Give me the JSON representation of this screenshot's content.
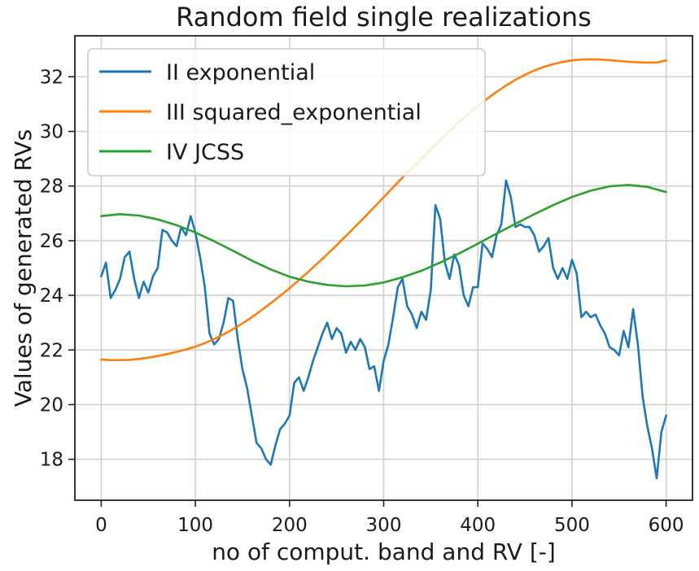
{
  "chart_data": {
    "type": "line",
    "title": "Random field single realizations",
    "xlabel": "no of comput. band and RV [-]",
    "ylabel": "Values of generated RVs",
    "xlim": [
      -28,
      628
    ],
    "ylim": [
      16.5,
      33.5
    ],
    "x_ticks": [
      0,
      100,
      200,
      300,
      400,
      500,
      600
    ],
    "y_ticks": [
      18,
      20,
      22,
      24,
      26,
      28,
      30,
      32
    ],
    "grid": true,
    "legend_position": "upper-left",
    "series": [
      {
        "name": "II exponential",
        "color": "#1f77b4",
        "x": [
          0,
          5,
          10,
          15,
          20,
          25,
          30,
          35,
          40,
          45,
          50,
          55,
          60,
          65,
          70,
          75,
          80,
          85,
          90,
          95,
          100,
          105,
          110,
          115,
          120,
          125,
          130,
          135,
          140,
          145,
          150,
          155,
          160,
          165,
          170,
          175,
          180,
          185,
          190,
          195,
          200,
          205,
          210,
          215,
          220,
          225,
          230,
          235,
          240,
          245,
          250,
          255,
          260,
          265,
          270,
          275,
          280,
          285,
          290,
          295,
          300,
          305,
          310,
          315,
          320,
          325,
          330,
          335,
          340,
          345,
          350,
          355,
          360,
          365,
          370,
          375,
          380,
          385,
          390,
          395,
          400,
          405,
          410,
          415,
          420,
          425,
          430,
          435,
          440,
          445,
          450,
          455,
          460,
          465,
          470,
          475,
          480,
          485,
          490,
          495,
          500,
          505,
          510,
          515,
          520,
          525,
          530,
          535,
          540,
          545,
          550,
          555,
          560,
          565,
          570,
          575,
          580,
          585,
          590,
          595,
          600
        ],
        "values": [
          24.7,
          25.2,
          23.9,
          24.2,
          24.6,
          25.4,
          25.6,
          24.6,
          23.9,
          24.5,
          24.1,
          24.7,
          25.0,
          26.4,
          26.3,
          26.0,
          25.8,
          26.5,
          26.2,
          26.9,
          26.3,
          25.4,
          24.3,
          22.6,
          22.2,
          22.4,
          23.0,
          23.9,
          23.8,
          22.4,
          21.3,
          20.6,
          19.6,
          18.6,
          18.4,
          18.0,
          17.8,
          18.5,
          19.1,
          19.3,
          19.6,
          20.8,
          21.0,
          20.5,
          21.0,
          21.6,
          22.1,
          22.6,
          23.0,
          22.4,
          22.8,
          22.6,
          21.9,
          22.3,
          22.0,
          22.4,
          22.1,
          21.3,
          21.4,
          20.5,
          21.6,
          22.2,
          23.2,
          24.3,
          24.6,
          23.6,
          23.3,
          22.8,
          23.4,
          23.1,
          24.2,
          27.3,
          26.8,
          25.2,
          24.6,
          25.5,
          25.1,
          24.0,
          23.6,
          24.3,
          24.3,
          25.9,
          25.7,
          25.4,
          26.2,
          26.6,
          28.2,
          27.6,
          26.5,
          26.6,
          26.5,
          26.5,
          26.2,
          25.6,
          25.8,
          26.1,
          25.0,
          24.6,
          25.0,
          24.6,
          25.3,
          24.8,
          23.2,
          23.4,
          23.2,
          23.3,
          22.9,
          22.6,
          22.1,
          22.0,
          21.8,
          22.7,
          22.1,
          23.5,
          22.2,
          20.3,
          19.2,
          18.4,
          17.3,
          19.0,
          19.6
        ]
      },
      {
        "name": "III squared_exponential",
        "color": "#ff7f0e",
        "x": [
          0,
          10,
          20,
          30,
          40,
          50,
          60,
          70,
          80,
          90,
          100,
          110,
          120,
          130,
          140,
          150,
          160,
          170,
          180,
          190,
          200,
          210,
          220,
          230,
          240,
          250,
          260,
          270,
          280,
          290,
          300,
          310,
          320,
          330,
          340,
          350,
          360,
          370,
          380,
          390,
          400,
          410,
          420,
          430,
          440,
          450,
          460,
          470,
          480,
          490,
          500,
          510,
          520,
          530,
          540,
          550,
          560,
          570,
          580,
          590,
          600
        ],
        "values": [
          21.65,
          21.63,
          21.63,
          21.64,
          21.67,
          21.72,
          21.78,
          21.85,
          21.93,
          22.02,
          22.12,
          22.25,
          22.4,
          22.57,
          22.76,
          22.97,
          23.2,
          23.45,
          23.71,
          23.98,
          24.26,
          24.56,
          24.86,
          25.18,
          25.5,
          25.83,
          26.17,
          26.52,
          26.87,
          27.23,
          27.59,
          27.95,
          28.31,
          28.66,
          29.01,
          29.35,
          29.69,
          30.02,
          30.34,
          30.64,
          30.93,
          31.2,
          31.45,
          31.68,
          31.89,
          32.07,
          32.23,
          32.36,
          32.46,
          32.54,
          32.6,
          32.63,
          32.64,
          32.63,
          32.61,
          32.58,
          32.55,
          32.53,
          32.52,
          32.52,
          32.6
        ]
      },
      {
        "name": "IV JCSS",
        "color": "#2ca02c",
        "x": [
          0,
          20,
          40,
          60,
          80,
          100,
          120,
          140,
          160,
          180,
          200,
          220,
          240,
          260,
          280,
          300,
          320,
          340,
          360,
          380,
          400,
          420,
          440,
          460,
          480,
          500,
          520,
          540,
          560,
          580,
          600
        ],
        "values": [
          26.9,
          26.97,
          26.92,
          26.78,
          26.57,
          26.3,
          25.98,
          25.63,
          25.27,
          24.95,
          24.68,
          24.5,
          24.38,
          24.33,
          24.36,
          24.47,
          24.66,
          24.9,
          25.2,
          25.53,
          25.89,
          26.26,
          26.62,
          26.97,
          27.3,
          27.6,
          27.83,
          27.99,
          28.04,
          27.97,
          27.78
        ]
      }
    ]
  }
}
